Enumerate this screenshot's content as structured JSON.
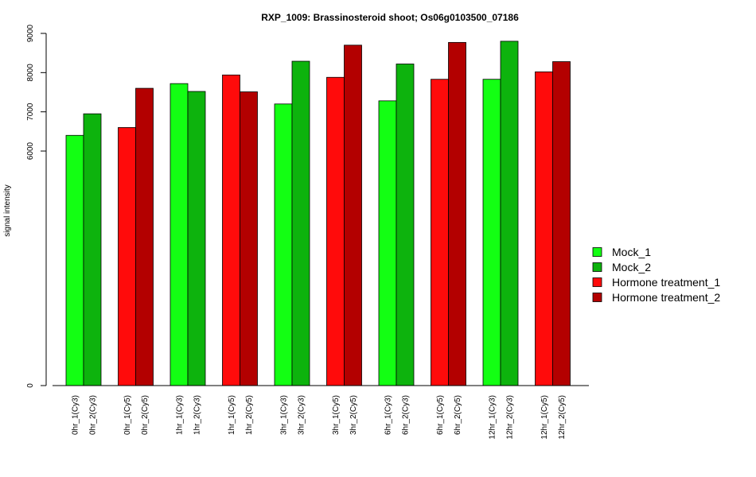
{
  "chart_data": {
    "type": "bar",
    "title": "RXP_1009: Brassinosteroid shoot; Os06g0103500_07186",
    "ylabel": "signal intensity",
    "xlabel": "",
    "yticks": [
      {
        "value": 0,
        "label": "0"
      },
      {
        "value": 6000,
        "label": "6000"
      },
      {
        "value": 7000,
        "label": "7000"
      },
      {
        "value": 8000,
        "label": "8000"
      },
      {
        "value": 9000,
        "label": "9000"
      }
    ],
    "bars": [
      {
        "label": "0hr_1(Cy3)",
        "value": 6400,
        "series": 0
      },
      {
        "label": "0hr_2(Cy3)",
        "value": 6950,
        "series": 1
      },
      {
        "label": "0hr_1(Cy5)",
        "value": 6600,
        "series": 2
      },
      {
        "label": "0hr_2(Cy5)",
        "value": 7600,
        "series": 3
      },
      {
        "label": "1hr_1(Cy3)",
        "value": 7720,
        "series": 0
      },
      {
        "label": "1hr_2(Cy3)",
        "value": 7520,
        "series": 1
      },
      {
        "label": "1hr_1(Cy5)",
        "value": 7940,
        "series": 2
      },
      {
        "label": "1hr_2(Cy5)",
        "value": 7510,
        "series": 3
      },
      {
        "label": "3hr_1(Cy3)",
        "value": 7200,
        "series": 0
      },
      {
        "label": "3hr_2(Cy3)",
        "value": 8290,
        "series": 1
      },
      {
        "label": "3hr_1(Cy5)",
        "value": 7880,
        "series": 2
      },
      {
        "label": "3hr_2(Cy5)",
        "value": 8700,
        "series": 3
      },
      {
        "label": "6hr_1(Cy3)",
        "value": 7280,
        "series": 0
      },
      {
        "label": "6hr_2(Cy3)",
        "value": 8220,
        "series": 1
      },
      {
        "label": "6hr_1(Cy5)",
        "value": 7830,
        "series": 2
      },
      {
        "label": "6hr_2(Cy5)",
        "value": 8770,
        "series": 3
      },
      {
        "label": "12hr_1(Cy3)",
        "value": 7830,
        "series": 0
      },
      {
        "label": "12hr_2(Cy3)",
        "value": 8800,
        "series": 1
      },
      {
        "label": "12hr_1(Cy5)",
        "value": 8020,
        "series": 2
      },
      {
        "label": "12hr_2(Cy5)",
        "value": 8280,
        "series": 3
      }
    ],
    "series": [
      {
        "name": "Mock_1",
        "color": "#13ff13"
      },
      {
        "name": "Mock_2",
        "color": "#0db30d"
      },
      {
        "name": "Hormone treatment_1",
        "color": "#ff0b0b"
      },
      {
        "name": "Hormone treatment_2",
        "color": "#b30000"
      }
    ],
    "legend_position": "right"
  }
}
